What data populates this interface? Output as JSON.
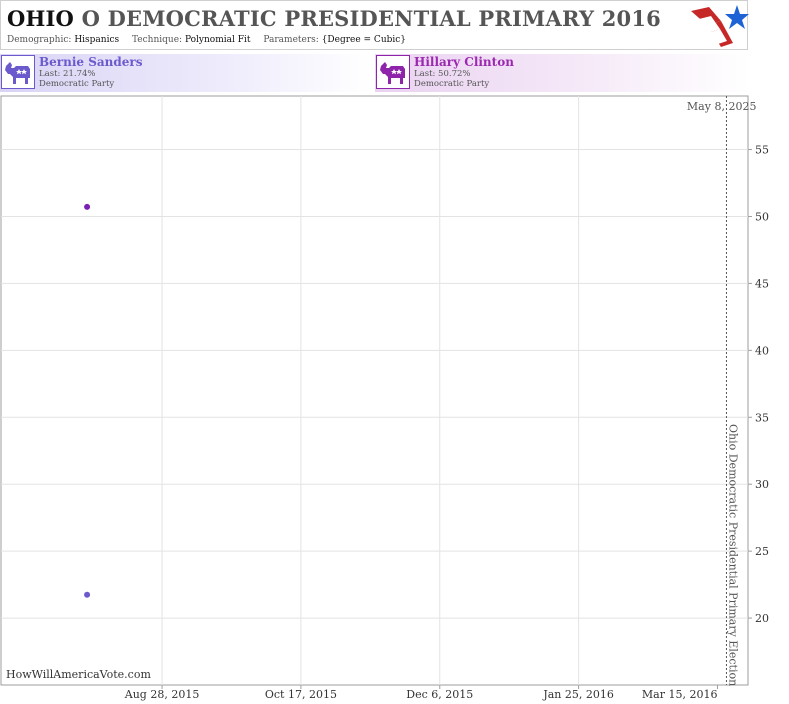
{
  "header": {
    "state": "OHIO",
    "title_rest": "O DEMOCRATIC PRESIDENTIAL PRIMARY 2016",
    "demographic_label": "Demographic:",
    "demographic_value": "Hispanics",
    "technique_label": "Technique:",
    "technique_value": "Polynomial Fit",
    "parameters_label": "Parameters:",
    "parameters_value": "{Degree = Cubic}"
  },
  "candidates": [
    {
      "name": "Bernie Sanders",
      "last": "Last: 21.74%",
      "party": "Democratic Party",
      "color": "#6a5acd"
    },
    {
      "name": "Hillary Clinton",
      "last": "Last: 50.72%",
      "party": "Democratic Party",
      "color": "#8e24aa"
    }
  ],
  "chart_data": {
    "type": "scatter",
    "x_axis": {
      "type": "date",
      "range": [
        "2015-07-01",
        "2016-03-26"
      ],
      "ticks": [
        {
          "value": "2015-08-28",
          "label": "Aug 28, 2015"
        },
        {
          "value": "2015-10-17",
          "label": "Oct 17, 2015"
        },
        {
          "value": "2015-12-06",
          "label": "Dec 6, 2015"
        },
        {
          "value": "2016-01-25",
          "label": "Jan 25, 2016"
        },
        {
          "value": "2016-03-15",
          "label": "Mar 15, 2016"
        }
      ]
    },
    "y_axis": {
      "range": [
        15,
        59
      ],
      "ticks": [
        20,
        25,
        30,
        35,
        40,
        45,
        50,
        55
      ],
      "position": "right"
    },
    "grid": true,
    "series": [
      {
        "name": "Hillary Clinton",
        "color": "#7b1fb5",
        "points": [
          {
            "x": "2015-08-01",
            "y": 50.72
          }
        ]
      },
      {
        "name": "Bernie Sanders",
        "color": "#6a5acd",
        "points": [
          {
            "x": "2015-08-01",
            "y": 21.74
          }
        ]
      }
    ],
    "annotations": {
      "event_line": {
        "x": "2016-03-15",
        "label": "Ohio Democratic Presidential Primary Election"
      },
      "top_right_date": "May 8, 2025"
    },
    "watermark": "HowWillAmericaVote.com"
  }
}
